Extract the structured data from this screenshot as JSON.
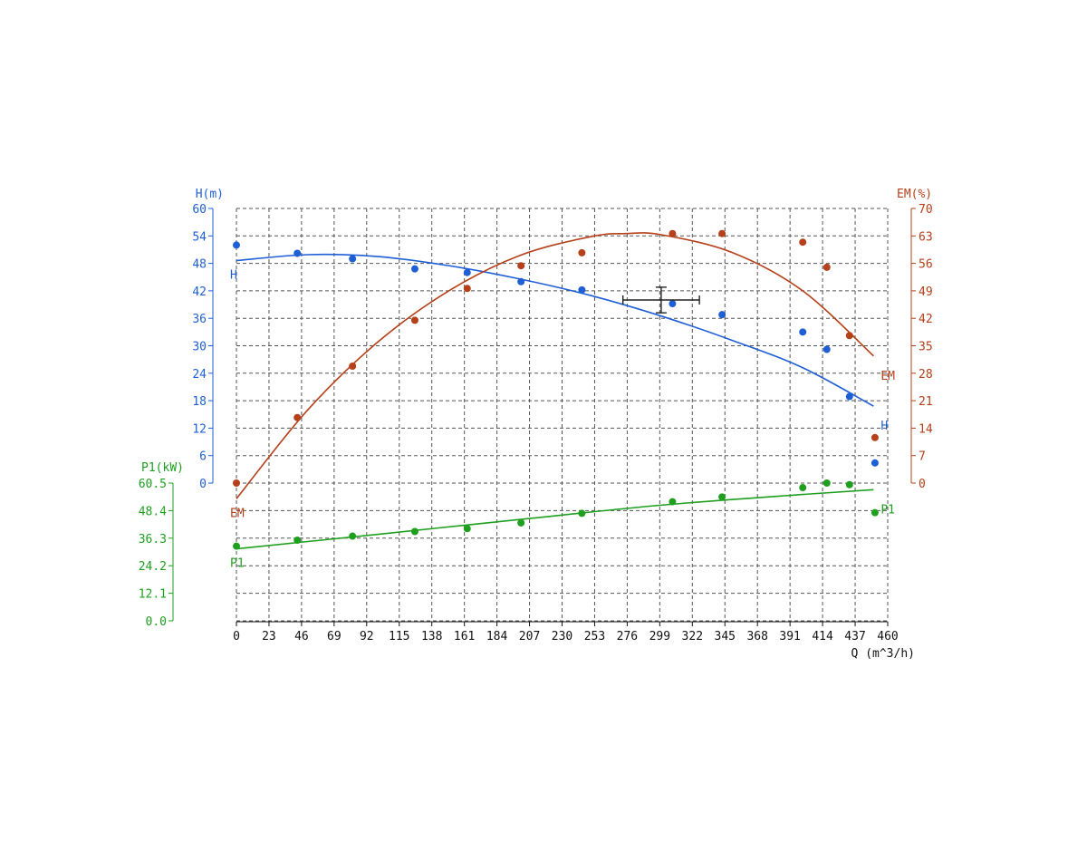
{
  "chart_data": {
    "type": "scatter",
    "x": {
      "label": "Q (m^3/h)",
      "range": [
        0,
        460
      ],
      "ticks": [
        0,
        23,
        46,
        69,
        92,
        115,
        138,
        161,
        184,
        207,
        230,
        253,
        276,
        299,
        322,
        345,
        368,
        391,
        414,
        437,
        460
      ]
    },
    "y_axes": {
      "H": {
        "title": "H(m)",
        "range": [
          0,
          60
        ],
        "ticks": [
          "0",
          "6",
          "12",
          "18",
          "24",
          "30",
          "36",
          "42",
          "48",
          "54",
          "60"
        ],
        "color": "#1f5fd6"
      },
      "EM": {
        "title": "EM(%)",
        "range": [
          0,
          70
        ],
        "ticks": [
          "0",
          "7",
          "14",
          "21",
          "28",
          "35",
          "42",
          "49",
          "56",
          "63",
          "70"
        ],
        "color": "#b5401a"
      },
      "P1": {
        "title": "P1(kW)",
        "range": [
          0,
          60.5
        ],
        "ticks": [
          "0.0",
          "12.1",
          "24.2",
          "36.3",
          "48.4",
          "60.5"
        ],
        "color": "#1ea01e"
      }
    },
    "grid": true,
    "series": [
      {
        "name": "H",
        "axis": "H",
        "color": "#1f5fd6",
        "points": [
          [
            0,
            52.0
          ],
          [
            43,
            50.2
          ],
          [
            82,
            49.0
          ],
          [
            126,
            46.8
          ],
          [
            163,
            46.0
          ],
          [
            201,
            44.0
          ],
          [
            244,
            42.2
          ],
          [
            308,
            39.2
          ],
          [
            343,
            36.8
          ],
          [
            400,
            33.0
          ],
          [
            417,
            29.2
          ],
          [
            433,
            18.9
          ],
          [
            451,
            4.4
          ]
        ],
        "fit": [
          [
            0,
            48.6
          ],
          [
            50,
            49.9
          ],
          [
            100,
            49.5
          ],
          [
            150,
            47.5
          ],
          [
            200,
            44.6
          ],
          [
            250,
            41.0
          ],
          [
            300,
            36.5
          ],
          [
            350,
            31.2
          ],
          [
            400,
            25.2
          ],
          [
            450,
            16.8
          ]
        ],
        "labels": [
          {
            "text": "H",
            "at": "start"
          },
          {
            "text": "H",
            "at": "end"
          }
        ]
      },
      {
        "name": "EM",
        "axis": "EM",
        "color": "#b5401a",
        "points": [
          [
            0,
            0.0
          ],
          [
            43,
            16.7
          ],
          [
            82,
            29.8
          ],
          [
            126,
            41.5
          ],
          [
            163,
            49.6
          ],
          [
            201,
            55.4
          ],
          [
            244,
            58.7
          ],
          [
            308,
            63.6
          ],
          [
            343,
            63.6
          ],
          [
            400,
            61.4
          ],
          [
            417,
            55.0
          ],
          [
            433,
            37.6
          ],
          [
            451,
            11.6
          ]
        ],
        "fit": [
          [
            0,
            -4.0
          ],
          [
            50,
            18.5
          ],
          [
            100,
            36.0
          ],
          [
            150,
            49.0
          ],
          [
            200,
            58.0
          ],
          [
            250,
            62.8
          ],
          [
            275,
            63.6
          ],
          [
            300,
            63.3
          ],
          [
            350,
            58.8
          ],
          [
            400,
            49.0
          ],
          [
            450,
            32.4
          ]
        ],
        "labels": [
          {
            "text": "EM",
            "at": "start"
          },
          {
            "text": "EM",
            "at": "end"
          }
        ]
      },
      {
        "name": "P1",
        "axis": "P1",
        "color": "#1ea01e",
        "points": [
          [
            0,
            32.8
          ],
          [
            43,
            35.4
          ],
          [
            82,
            37.2
          ],
          [
            126,
            39.2
          ],
          [
            163,
            40.5
          ],
          [
            201,
            43.0
          ],
          [
            244,
            47.2
          ],
          [
            308,
            52.3
          ],
          [
            343,
            54.4
          ],
          [
            400,
            58.5
          ],
          [
            417,
            60.5
          ],
          [
            433,
            59.8
          ],
          [
            451,
            47.5
          ]
        ],
        "fit": [
          [
            0,
            31.6
          ],
          [
            100,
            38.0
          ],
          [
            200,
            44.5
          ],
          [
            300,
            50.8
          ],
          [
            400,
            55.5
          ],
          [
            450,
            57.6
          ]
        ],
        "labels": [
          {
            "text": "P1",
            "at": "start"
          },
          {
            "text": "P1",
            "at": "end"
          }
        ]
      }
    ],
    "operating_point": {
      "x": 300,
      "y_H": 40.0,
      "x_error": [
        273,
        327
      ],
      "y_error_H": [
        37.2,
        42.8
      ],
      "color": "#222222"
    }
  }
}
